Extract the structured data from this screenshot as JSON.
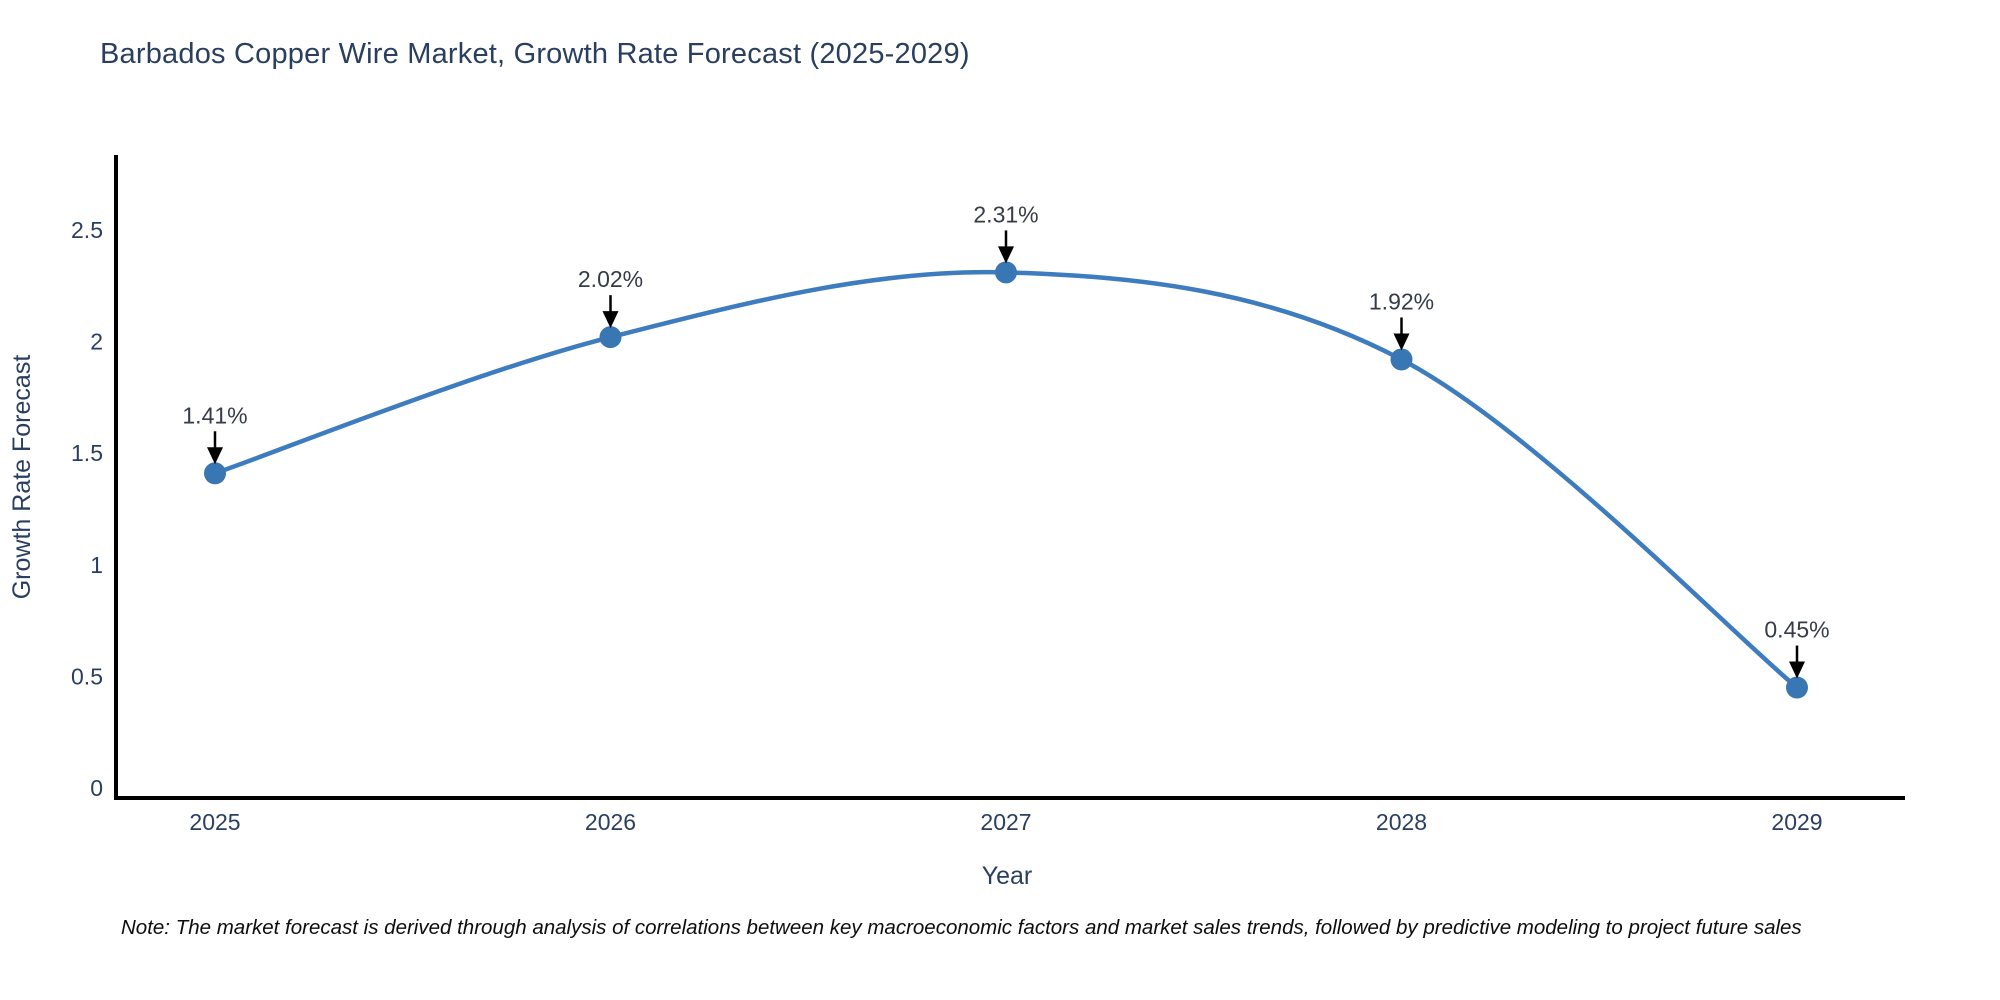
{
  "title": "Barbados Copper Wire Market, Growth Rate Forecast (2025-2029)",
  "note": "Note: The market forecast is derived through analysis of correlations between key macroeconomic factors and market sales trends, followed by predictive modeling to project future sales",
  "chart_data": {
    "type": "line",
    "line_shape": "spline",
    "title": "Barbados Copper Wire Market, Growth Rate Forecast (2025-2029)",
    "xlabel": "Year",
    "ylabel": "Growth Rate Forecast",
    "categories": [
      "2025",
      "2026",
      "2027",
      "2028",
      "2029"
    ],
    "values": [
      1.41,
      2.02,
      2.31,
      1.92,
      0.45
    ],
    "point_labels": [
      "1.41%",
      "2.02%",
      "2.31%",
      "1.92%",
      "0.45%"
    ],
    "y_ticks": [
      "0",
      "0.5",
      "1",
      "1.5",
      "2",
      "2.5"
    ],
    "y_tick_values": [
      0,
      0.5,
      1,
      1.5,
      2,
      2.5
    ],
    "ylim": [
      0,
      2.82
    ],
    "grid": false,
    "legend_position": "none",
    "colors": {
      "line": "#3d7cbf",
      "marker": "#3876b4",
      "arrow": "#000000",
      "axis": "#000000",
      "text": "#2a3f5f"
    }
  }
}
